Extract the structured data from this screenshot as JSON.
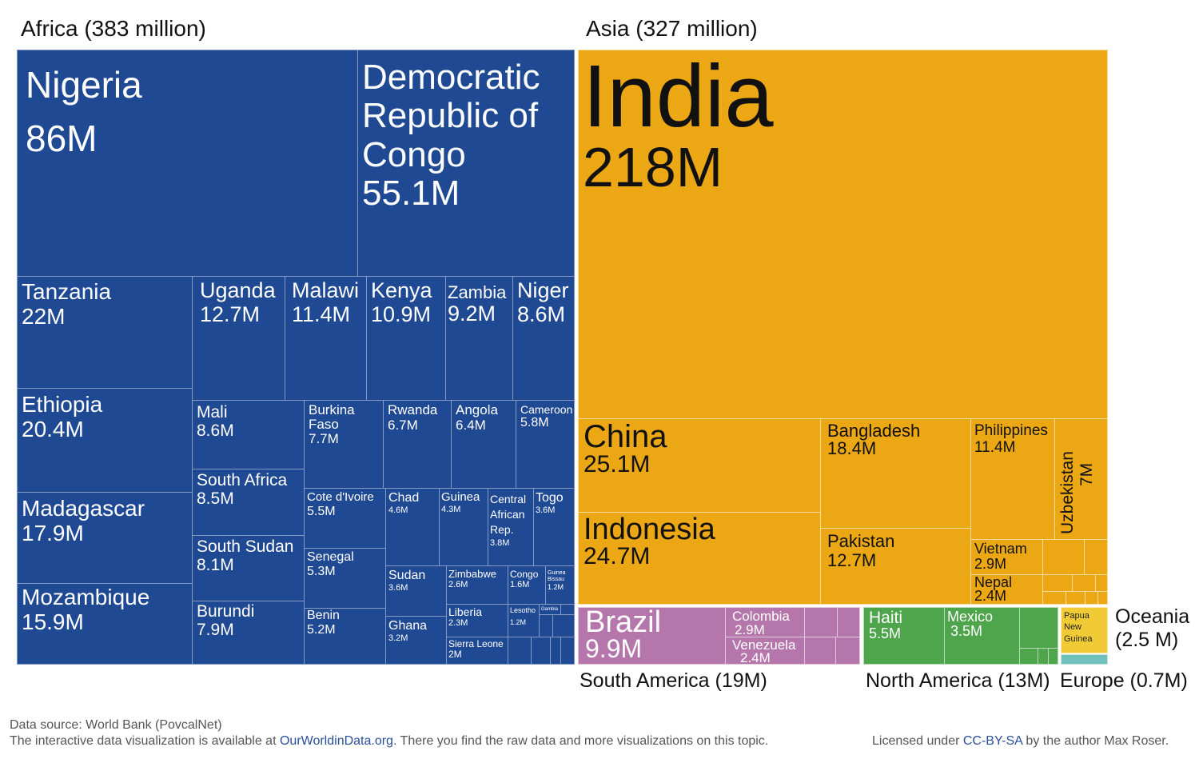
{
  "chart_data": {
    "type": "treemap",
    "regions": [
      {
        "name": "Africa",
        "label": "Africa (383 million)",
        "color": "#1f4993",
        "items": [
          {
            "name": "Nigeria",
            "value": "86M"
          },
          {
            "name": "Democratic Republic of Congo",
            "value": "55.1M"
          },
          {
            "name": "Tanzania",
            "value": "22M"
          },
          {
            "name": "Ethiopia",
            "value": "20.4M"
          },
          {
            "name": "Madagascar",
            "value": "17.9M"
          },
          {
            "name": "Mozambique",
            "value": "15.9M"
          },
          {
            "name": "Uganda",
            "value": "12.7M"
          },
          {
            "name": "Malawi",
            "value": "11.4M"
          },
          {
            "name": "Kenya",
            "value": "10.9M"
          },
          {
            "name": "Zambia",
            "value": "9.2M"
          },
          {
            "name": "Niger",
            "value": "8.6M"
          },
          {
            "name": "Mali",
            "value": "8.6M"
          },
          {
            "name": "Burkina Faso",
            "value": "7.7M"
          },
          {
            "name": "Rwanda",
            "value": "6.7M"
          },
          {
            "name": "Angola",
            "value": "6.4M"
          },
          {
            "name": "Cameroon",
            "value": "5.8M"
          },
          {
            "name": "South Africa",
            "value": "8.5M"
          },
          {
            "name": "South Sudan",
            "value": "8.1M"
          },
          {
            "name": "Burundi",
            "value": "7.9M"
          },
          {
            "name": "Cote d'Ivoire",
            "value": "5.5M"
          },
          {
            "name": "Senegal",
            "value": "5.3M"
          },
          {
            "name": "Benin",
            "value": "5.2M"
          },
          {
            "name": "Chad",
            "value": "4.6M"
          },
          {
            "name": "Guinea",
            "value": "4.3M"
          },
          {
            "name": "Central African Rep.",
            "value": "3.8M"
          },
          {
            "name": "Togo",
            "value": "3.6M"
          },
          {
            "name": "Sudan",
            "value": "3.6M"
          },
          {
            "name": "Ghana",
            "value": "3.2M"
          },
          {
            "name": "Zimbabwe",
            "value": "2.6M"
          },
          {
            "name": "Congo",
            "value": "1.6M"
          },
          {
            "name": "Guinea Bissau",
            "value": "1.2M"
          },
          {
            "name": "Liberia",
            "value": "2.3M"
          },
          {
            "name": "Lesotho",
            "value": "1.2M"
          },
          {
            "name": "Gambia",
            "value": ""
          },
          {
            "name": "Sierra Leone",
            "value": "2M"
          }
        ]
      },
      {
        "name": "Asia",
        "label": "Asia (327 million)",
        "color": "#eca714",
        "items": [
          {
            "name": "India",
            "value": "218M"
          },
          {
            "name": "China",
            "value": "25.1M"
          },
          {
            "name": "Indonesia",
            "value": "24.7M"
          },
          {
            "name": "Bangladesh",
            "value": "18.4M"
          },
          {
            "name": "Pakistan",
            "value": "12.7M"
          },
          {
            "name": "Philippines",
            "value": "11.4M"
          },
          {
            "name": "Uzbekistan",
            "value": "7M"
          },
          {
            "name": "Vietnam",
            "value": "2.9M"
          },
          {
            "name": "Nepal",
            "value": "2.4M"
          }
        ]
      },
      {
        "name": "South America",
        "label": "South America (19M)",
        "color": "#b577ab",
        "items": [
          {
            "name": "Brazil",
            "value": "9.9M"
          },
          {
            "name": "Colombia",
            "value": "2.9M"
          },
          {
            "name": "Venezuela",
            "value": "2.4M"
          }
        ]
      },
      {
        "name": "North America",
        "label": "North America (13M)",
        "color": "#4fa54b",
        "items": [
          {
            "name": "Haiti",
            "value": "5.5M"
          },
          {
            "name": "Mexico",
            "value": "3.5M"
          }
        ]
      },
      {
        "name": "Oceania",
        "label": "Oceania (2.5 M)",
        "color": "#f1cb36",
        "items": [
          {
            "name": "Papua New Guinea",
            "value": ""
          }
        ]
      },
      {
        "name": "Europe",
        "label": "Europe (0.7M)",
        "color": "#70c1bb",
        "items": []
      }
    ]
  },
  "footer": {
    "source": "Data source: World Bank (PovcalNet)",
    "note_prefix": "The interactive data visualization is available at ",
    "note_link": "OurWorldinData.org",
    "note_suffix": ". There you find the raw data and more visualizations on this topic.",
    "license_prefix": "Licensed under ",
    "license_link": "CC-BY-SA",
    "license_suffix": " by the author Max Roser."
  }
}
